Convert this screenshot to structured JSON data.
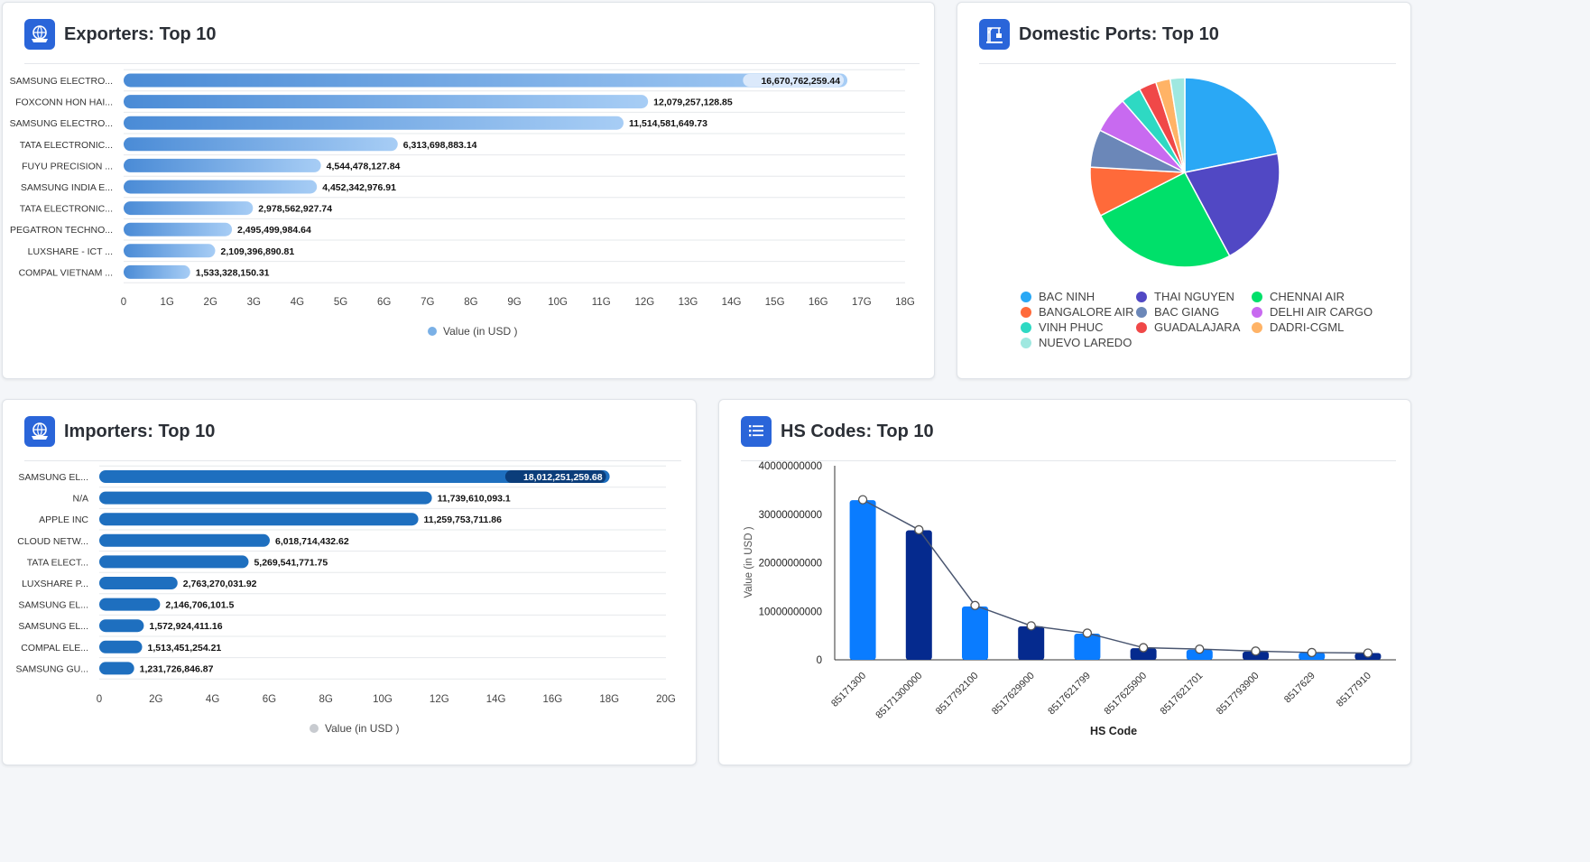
{
  "exporters": {
    "title": "Exporters: Top 10",
    "legend_label": "Value (in USD )",
    "bar_color_start": "#4a8bd6",
    "bar_color_end": "#a7cdf5",
    "legend_color": "#7ab0e6"
  },
  "ports": {
    "title": "Domestic Ports: Top 10"
  },
  "importers": {
    "title": "Importers: Top 10",
    "legend_label": "Value (in USD )",
    "bar_color": "#1e6fbf",
    "legend_color": "#c8cbd0"
  },
  "hscodes": {
    "title": "HS Codes: Top 10",
    "color_light": "#0a7cff",
    "color_dark": "#052a8e"
  },
  "chart_data": [
    {
      "id": "exporters",
      "type": "bar",
      "orientation": "horizontal",
      "categories": [
        "SAMSUNG ELECTRO...",
        "FOXCONN HON HAI...",
        "SAMSUNG ELECTRO...",
        "TATA ELECTRONIC...",
        "FUYU PRECISION ...",
        "SAMSUNG INDIA E...",
        "TATA ELECTRONIC...",
        "PEGATRON TECHNO...",
        "LUXSHARE - ICT ...",
        "COMPAL VIETNAM ..."
      ],
      "values": [
        16670762259.44,
        12079257128.85,
        11514581649.73,
        6313698883.14,
        4544478127.84,
        4452342976.91,
        2978562927.74,
        2495499984.64,
        2109396890.81,
        1533328150.31
      ],
      "value_labels": [
        "16,670,762,259.44",
        "12,079,257,128.85",
        "11,514,581,649.73",
        "6,313,698,883.14",
        "4,544,478,127.84",
        "4,452,342,976.91",
        "2,978,562,927.74",
        "2,495,499,984.64",
        "2,109,396,890.81",
        "1,533,328,150.31"
      ],
      "xlim": [
        0,
        18000000000
      ],
      "xticks": [
        "0",
        "1G",
        "2G",
        "3G",
        "4G",
        "5G",
        "6G",
        "7G",
        "8G",
        "9G",
        "10G",
        "11G",
        "12G",
        "13G",
        "14G",
        "15G",
        "16G",
        "17G",
        "18G"
      ],
      "legend": "bottom-center"
    },
    {
      "id": "ports",
      "type": "pie",
      "labels": [
        "BAC NINH",
        "THAI NGUYEN",
        "CHENNAI AIR",
        "BANGALORE AIR",
        "BAC GIANG",
        "DELHI AIR CARGO",
        "VINH PHUC",
        "GUADALAJARA",
        "DADRI-CGML",
        "NUEVO LAREDO"
      ],
      "values": [
        22.0,
        20.5,
        25.5,
        8.5,
        6.5,
        6.3,
        3.5,
        3.0,
        2.5,
        2.5
      ],
      "colors": [
        "#2aa8f5",
        "#5148c4",
        "#00e06a",
        "#ff6a3a",
        "#6b87b8",
        "#c86af0",
        "#2ed9c3",
        "#f04848",
        "#ffb366",
        "#9fe8e0"
      ],
      "legend": "bottom"
    },
    {
      "id": "importers",
      "type": "bar",
      "orientation": "horizontal",
      "categories": [
        "SAMSUNG EL...",
        "N/A",
        "APPLE INC",
        "CLOUD NETW...",
        "TATA ELECT...",
        "LUXSHARE P...",
        "SAMSUNG EL...",
        "SAMSUNG EL...",
        "COMPAL ELE...",
        "SAMSUNG GU..."
      ],
      "values": [
        18012251259.68,
        11739610093.1,
        11259753711.86,
        6018714432.62,
        5269541771.75,
        2763270031.92,
        2146706101.5,
        1572924411.16,
        1513451254.21,
        1231726846.87
      ],
      "value_labels": [
        "18,012,251,259.68",
        "11,739,610,093.1",
        "11,259,753,711.86",
        "6,018,714,432.62",
        "5,269,541,771.75",
        "2,763,270,031.92",
        "2,146,706,101.5",
        "1,572,924,411.16",
        "1,513,451,254.21",
        "1,231,726,846.87"
      ],
      "xlim": [
        0,
        20000000000
      ],
      "xticks": [
        "0",
        "2G",
        "4G",
        "6G",
        "8G",
        "10G",
        "12G",
        "14G",
        "16G",
        "18G",
        "20G"
      ],
      "legend": "bottom-center"
    },
    {
      "id": "hscodes",
      "type": "bar",
      "categories": [
        "85171300",
        "85171300000",
        "8517792100",
        "8517629900",
        "8517621799",
        "8517625900",
        "8517621701",
        "8517793900",
        "8517629",
        "85177910"
      ],
      "values": [
        32900000000,
        26700000000,
        11000000000,
        6900000000,
        5400000000,
        2400000000,
        2100000000,
        1700000000,
        1500000000,
        1400000000
      ],
      "line_values": [
        33000000000,
        26800000000,
        11200000000,
        7000000000,
        5500000000,
        2500000000,
        2200000000,
        1800000000,
        1500000000,
        1400000000
      ],
      "ylim": [
        0,
        40000000000
      ],
      "yticks": [
        "0",
        "10000000000",
        "20000000000",
        "30000000000",
        "40000000000"
      ],
      "xlabel": "HS Code",
      "ylabel": "Value (in USD )"
    }
  ]
}
